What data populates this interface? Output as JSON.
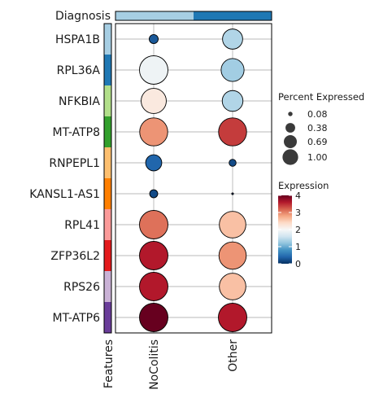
{
  "chart_data": {
    "type": "dotplot",
    "diagnosis_label": "Diagnosis",
    "groups": [
      "NoColitis",
      "Other"
    ],
    "group_colors": [
      "#a6cee3",
      "#1f78b4"
    ],
    "features_label": "Features",
    "features": [
      {
        "gene": "HSPA1B",
        "color": "#a6cee3"
      },
      {
        "gene": "RPL36A",
        "color": "#1f78b4"
      },
      {
        "gene": "NFKBIA",
        "color": "#b2df8a"
      },
      {
        "gene": "MT-ATP8",
        "color": "#33a02c"
      },
      {
        "gene": "RNPEPL1",
        "color": "#fdbf6f"
      },
      {
        "gene": "KANSL1-AS1",
        "color": "#ff7f00"
      },
      {
        "gene": "RPL41",
        "color": "#fb9a99"
      },
      {
        "gene": "ZFP36L2",
        "color": "#e31a1c"
      },
      {
        "gene": "RPS26",
        "color": "#cab2d6"
      },
      {
        "gene": "MT-ATP6",
        "color": "#6a3d9a"
      }
    ],
    "percent_expressed": [
      [
        0.1,
        0.5
      ],
      [
        1.0,
        0.65
      ],
      [
        0.78,
        0.53
      ],
      [
        0.97,
        0.97
      ],
      [
        0.32,
        0.06
      ],
      [
        0.08,
        0.004
      ],
      [
        1.0,
        0.87
      ],
      [
        1.0,
        0.92
      ],
      [
        1.0,
        0.87
      ],
      [
        1.0,
        1.0
      ]
    ],
    "expression": [
      [
        0.3,
        1.4
      ],
      [
        1.9,
        1.3
      ],
      [
        2.2,
        1.4
      ],
      [
        2.9,
        3.4
      ],
      [
        0.4,
        0.2
      ],
      [
        0.2,
        0.1
      ],
      [
        3.1,
        2.6
      ],
      [
        3.6,
        2.9
      ],
      [
        3.6,
        2.6
      ],
      [
        4.1,
        3.6
      ]
    ],
    "size_legend": {
      "title": "Percent Expressed",
      "values": [
        0.08,
        0.38,
        0.69,
        1.0
      ],
      "labels": [
        "0.08",
        "0.38",
        "0.69",
        "1.00"
      ]
    },
    "color_legend": {
      "title": "Expression",
      "min": 0,
      "max": 4,
      "ticks": [
        4,
        3,
        2,
        1,
        0
      ],
      "colormap": "RdBu_r"
    }
  }
}
